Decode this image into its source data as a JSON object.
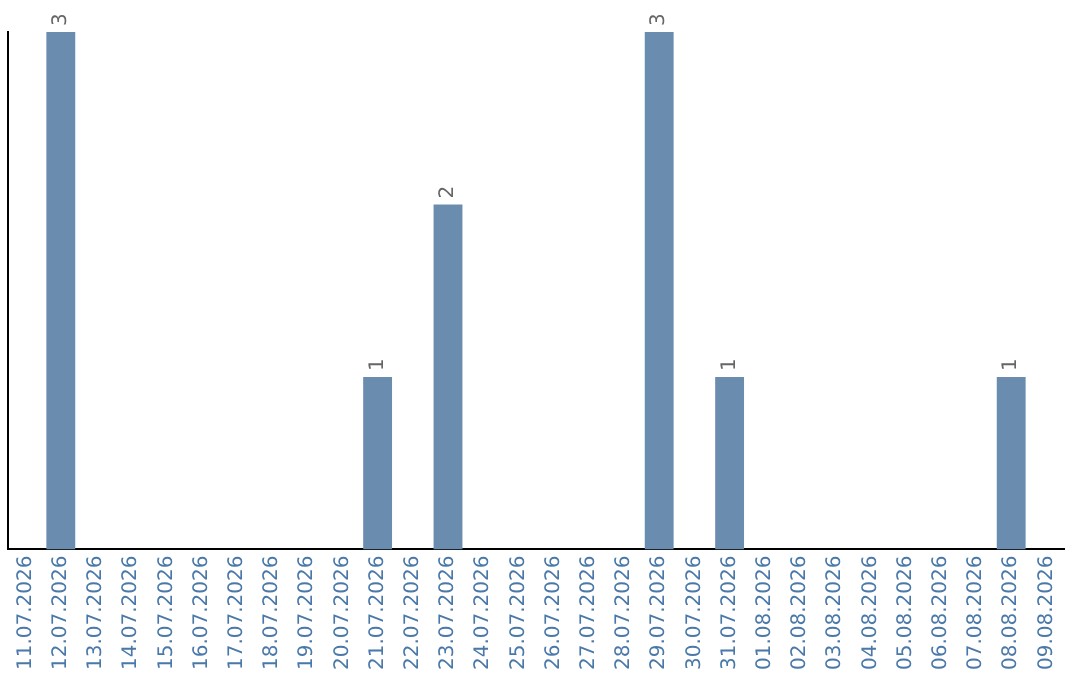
{
  "chart_data": {
    "type": "bar",
    "categories": [
      "11.07.2026",
      "12.07.2026",
      "13.07.2026",
      "14.07.2026",
      "15.07.2026",
      "16.07.2026",
      "17.07.2026",
      "18.07.2026",
      "19.07.2026",
      "20.07.2026",
      "21.07.2026",
      "22.07.2026",
      "23.07.2026",
      "24.07.2026",
      "25.07.2026",
      "26.07.2026",
      "27.07.2026",
      "28.07.2026",
      "29.07.2026",
      "30.07.2026",
      "31.07.2026",
      "01.08.2026",
      "02.08.2026",
      "03.08.2026",
      "04.08.2026",
      "05.08.2026",
      "06.08.2026",
      "07.08.2026",
      "08.08.2026",
      "09.08.2026"
    ],
    "values": [
      0,
      3,
      0,
      0,
      0,
      0,
      0,
      0,
      0,
      0,
      1,
      0,
      2,
      0,
      0,
      0,
      0,
      0,
      3,
      0,
      1,
      0,
      0,
      0,
      0,
      0,
      0,
      0,
      1,
      0
    ],
    "value_labels": [
      null,
      "3",
      null,
      null,
      null,
      null,
      null,
      null,
      null,
      null,
      "1",
      null,
      "2",
      null,
      null,
      null,
      null,
      null,
      "3",
      null,
      "1",
      null,
      null,
      null,
      null,
      null,
      null,
      null,
      "1",
      null
    ],
    "color": "#6a8caf",
    "ylim": [
      0,
      3
    ],
    "tick_labels": "x",
    "grid": false,
    "legend": false
  }
}
